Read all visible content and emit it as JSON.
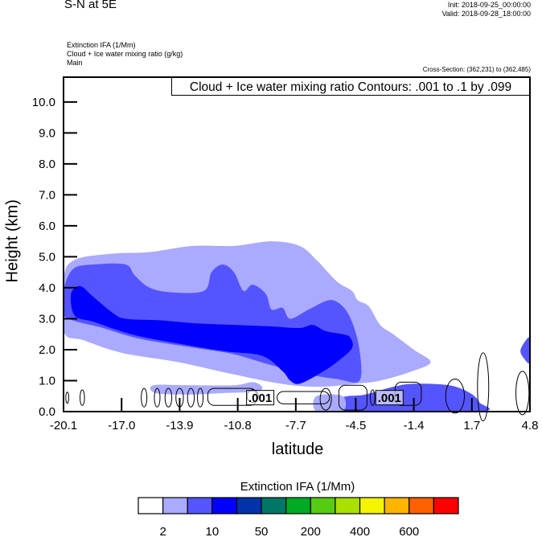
{
  "header": {
    "title": "S-N at 5E",
    "init": "Init: 2018-09-25_00:00:00",
    "valid": "Valid: 2018-09-28_18:00:00",
    "fields": [
      "Extinction IFA   (1/Mm)",
      "Cloud + Ice water mixing ratio   (g/kg)",
      "Main"
    ],
    "cross_section": "Cross-Section: (362,231) to (362,485)",
    "contour_info": "Cloud + Ice water mixing ratio Contours: .001 to .1 by .099"
  },
  "chart_data": {
    "type": "heatmap",
    "title": "S-N at 5E",
    "xlabel": "latitude",
    "ylabel": "Height (km)",
    "xlim": [
      -20.1,
      4.8
    ],
    "ylim": [
      0.0,
      10.8
    ],
    "x_ticks": [
      "-20.1",
      "-17.0",
      "-13.9",
      "-10.8",
      "-7.7",
      "-4.5",
      "-1.4",
      "1.7",
      "4.8"
    ],
    "y_ticks": [
      "0.0",
      "1.0",
      "2.0",
      "3.0",
      "4.0",
      "5.0",
      "6.0",
      "7.0",
      "8.0",
      "9.0",
      "10.0"
    ],
    "grid": false,
    "filled_field": {
      "name": "Extinction IFA",
      "units": "1/Mm",
      "levels_labels": [
        "2",
        "10",
        "50",
        "200",
        "400",
        "600"
      ],
      "colors": [
        "#ffffff",
        "#aaaaff",
        "#5555ff",
        "#0000ff",
        "#0033aa",
        "#007766",
        "#00aa22",
        "#55cc11",
        "#aae000",
        "#f4f400",
        "#ffb400",
        "#ff6000",
        "#ff0000"
      ],
      "regions": [
        {
          "level_index": 1,
          "description": "light band 2-10",
          "outline": [
            [
              -20.1,
              4.3
            ],
            [
              -19.5,
              4.9
            ],
            [
              -17.5,
              5.1
            ],
            [
              -15.5,
              5.15
            ],
            [
              -13.2,
              5.35
            ],
            [
              -11,
              5.35
            ],
            [
              -9,
              5.5
            ],
            [
              -7.5,
              5.35
            ],
            [
              -6.6,
              4.9
            ],
            [
              -5.5,
              4.2
            ],
            [
              -4.7,
              3.9
            ],
            [
              -4.4,
              3.6
            ],
            [
              -3.8,
              3.4
            ],
            [
              -3.2,
              2.8
            ],
            [
              -2.5,
              2.5
            ],
            [
              -1.4,
              2.0
            ],
            [
              -0.5,
              1.6
            ],
            [
              -1.5,
              1.3
            ],
            [
              -3.2,
              1.0
            ],
            [
              -4.5,
              0.9
            ],
            [
              -6.5,
              0.8
            ],
            [
              -8.5,
              0.9
            ],
            [
              -11,
              1.2
            ],
            [
              -14,
              1.6
            ],
            [
              -17,
              1.9
            ],
            [
              -19,
              2.3
            ],
            [
              -20.1,
              2.6
            ]
          ]
        },
        {
          "level_index": 2,
          "description": "medium band 10-50",
          "outline": [
            [
              -20.1,
              3.9
            ],
            [
              -19.6,
              4.6
            ],
            [
              -18.5,
              4.75
            ],
            [
              -16.8,
              4.75
            ],
            [
              -16.3,
              4.4
            ],
            [
              -15.5,
              4.0
            ],
            [
              -14.3,
              3.85
            ],
            [
              -12.6,
              3.9
            ],
            [
              -12.2,
              4.5
            ],
            [
              -11.6,
              4.75
            ],
            [
              -11,
              4.5
            ],
            [
              -10.5,
              3.9
            ],
            [
              -10,
              4.1
            ],
            [
              -9.3,
              3.8
            ],
            [
              -9,
              3.3
            ],
            [
              -8.4,
              3.35
            ],
            [
              -8,
              3.0
            ],
            [
              -7,
              3.3
            ],
            [
              -5.9,
              3.6
            ],
            [
              -5.2,
              3.4
            ],
            [
              -4.7,
              2.9
            ],
            [
              -4.3,
              2.0
            ],
            [
              -4.3,
              1.0
            ],
            [
              -5.5,
              1.05
            ],
            [
              -7,
              1.2
            ],
            [
              -9,
              1.5
            ],
            [
              -11,
              1.85
            ],
            [
              -13,
              2.05
            ],
            [
              -16,
              2.35
            ],
            [
              -18,
              2.7
            ],
            [
              -20.1,
              3.1
            ]
          ]
        },
        {
          "level_index": 3,
          "description": "core 50-200",
          "outline": [
            [
              -19.7,
              3.8
            ],
            [
              -19.2,
              4.05
            ],
            [
              -18.5,
              3.7
            ],
            [
              -17.5,
              3.2
            ],
            [
              -16.8,
              3.0
            ],
            [
              -15,
              2.95
            ],
            [
              -13,
              2.85
            ],
            [
              -11,
              2.8
            ],
            [
              -9,
              2.75
            ],
            [
              -7.5,
              2.7
            ],
            [
              -6.8,
              2.8
            ],
            [
              -6.1,
              2.6
            ],
            [
              -5.2,
              2.5
            ],
            [
              -4.8,
              2.4
            ],
            [
              -4.7,
              2.05
            ],
            [
              -5.5,
              1.6
            ],
            [
              -6.5,
              1.2
            ],
            [
              -7.5,
              0.9
            ],
            [
              -8,
              1.0
            ],
            [
              -8.4,
              1.3
            ],
            [
              -9.5,
              1.8
            ],
            [
              -11.5,
              1.95
            ],
            [
              -14,
              2.2
            ],
            [
              -16.5,
              2.5
            ],
            [
              -18.5,
              2.9
            ],
            [
              -19.5,
              3.1
            ]
          ]
        },
        {
          "level_index": 1,
          "description": "low-level patch",
          "outline": [
            [
              -15.3,
              0.85
            ],
            [
              -13.5,
              0.85
            ],
            [
              -11,
              0.85
            ],
            [
              -10,
              0.95
            ],
            [
              -9.5,
              0.8
            ],
            [
              -9.8,
              0.65
            ],
            [
              -11.5,
              0.6
            ],
            [
              -13.5,
              0.55
            ],
            [
              -15.2,
              0.6
            ]
          ]
        },
        {
          "level_index": 2,
          "description": "surface layer",
          "outline": [
            [
              -5.2,
              0
            ],
            [
              -5.2,
              0.45
            ],
            [
              -4.0,
              0.55
            ],
            [
              -2.5,
              0.8
            ],
            [
              -1.4,
              0.9
            ],
            [
              0.5,
              0.85
            ],
            [
              1.6,
              0.6
            ],
            [
              2.1,
              0.3
            ],
            [
              2.1,
              0
            ]
          ]
        },
        {
          "level_index": 1,
          "description": "surface layer edge",
          "outline": [
            [
              -6.6,
              0
            ],
            [
              -6.6,
              0.5
            ],
            [
              -5.2,
              0.5
            ],
            [
              -5.2,
              0
            ]
          ]
        },
        {
          "level_index": 2,
          "description": "right-edge patch",
          "outline": [
            [
              4.8,
              2.4
            ],
            [
              4.3,
              2.0
            ],
            [
              4.5,
              1.7
            ],
            [
              4.8,
              1.6
            ]
          ]
        }
      ]
    },
    "contour_field": {
      "name": "Cloud + Ice water mixing ratio",
      "units": "g/kg",
      "contour_range": [
        0.001,
        0.1
      ],
      "interval": 0.099,
      "labels": [
        {
          "text": ".001",
          "x": -9.6,
          "y": 0.45
        },
        {
          "text": ".001",
          "x": -2.7,
          "y": 0.45
        }
      ]
    }
  },
  "legend": {
    "title": "Extinction IFA  (1/Mm)",
    "labels": [
      "2",
      "10",
      "50",
      "200",
      "400",
      "600"
    ],
    "placement": "bottom"
  }
}
